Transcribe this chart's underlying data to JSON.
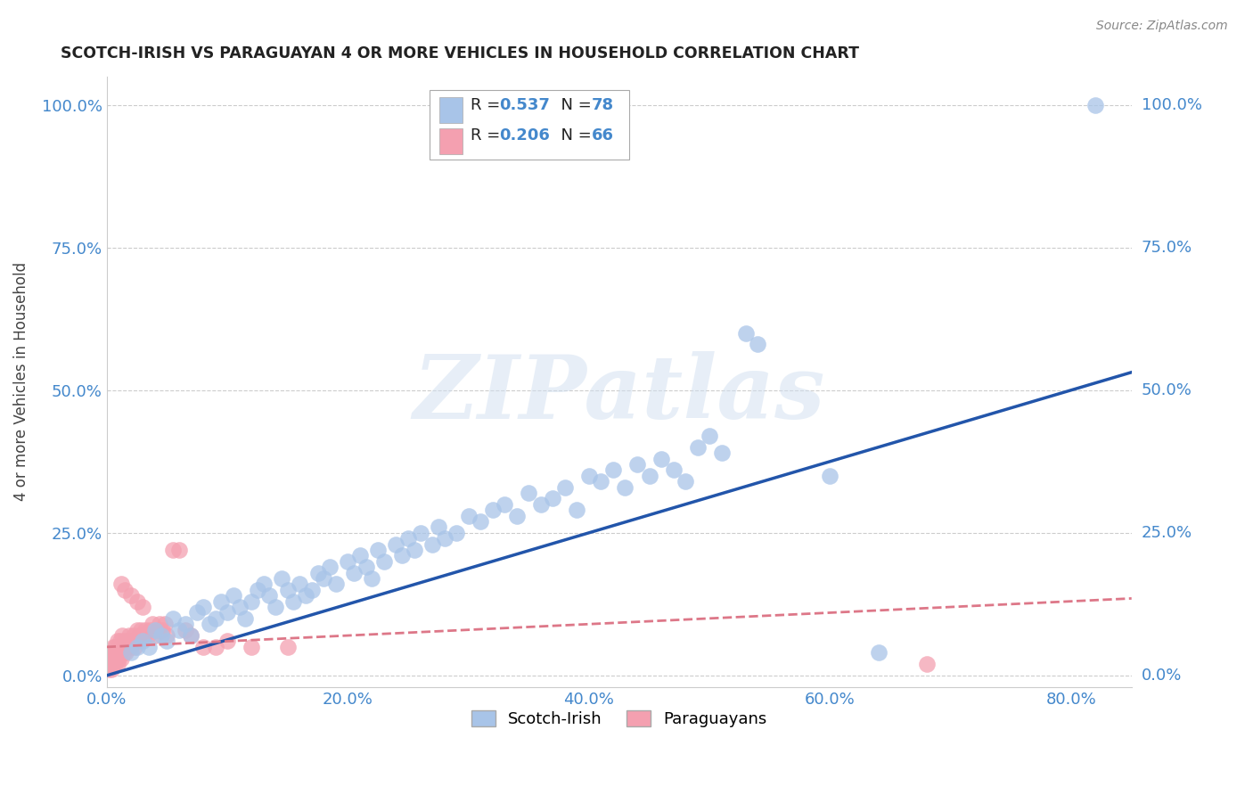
{
  "title": "SCOTCH-IRISH VS PARAGUAYAN 4 OR MORE VEHICLES IN HOUSEHOLD CORRELATION CHART",
  "source": "Source: ZipAtlas.com",
  "ylabel": "4 or more Vehicles in Household",
  "xticklabels": [
    "0.0%",
    "20.0%",
    "40.0%",
    "60.0%",
    "80.0%"
  ],
  "yticklabels": [
    "0.0%",
    "25.0%",
    "50.0%",
    "75.0%",
    "100.0%"
  ],
  "xticks": [
    0.0,
    0.2,
    0.4,
    0.6,
    0.8
  ],
  "yticks": [
    0.0,
    0.25,
    0.5,
    0.75,
    1.0
  ],
  "xlim": [
    0.0,
    0.85
  ],
  "ylim": [
    -0.02,
    1.05
  ],
  "scotch_irish_R": 0.537,
  "scotch_irish_N": 78,
  "paraguayan_R": 0.206,
  "paraguayan_N": 66,
  "scotch_irish_color": "#a8c4e8",
  "paraguayan_color": "#f4a0b0",
  "trendline_scotch_color": "#2255aa",
  "trendline_paraguayan_color": "#dd7788",
  "watermark": "ZIPatlas",
  "scotch_irish_x": [
    0.02,
    0.025,
    0.03,
    0.035,
    0.04,
    0.045,
    0.05,
    0.055,
    0.06,
    0.065,
    0.07,
    0.075,
    0.08,
    0.085,
    0.09,
    0.095,
    0.1,
    0.105,
    0.11,
    0.115,
    0.12,
    0.125,
    0.13,
    0.135,
    0.14,
    0.145,
    0.15,
    0.155,
    0.16,
    0.165,
    0.17,
    0.175,
    0.18,
    0.185,
    0.19,
    0.2,
    0.205,
    0.21,
    0.215,
    0.22,
    0.225,
    0.23,
    0.24,
    0.245,
    0.25,
    0.255,
    0.26,
    0.27,
    0.275,
    0.28,
    0.29,
    0.3,
    0.31,
    0.32,
    0.33,
    0.34,
    0.35,
    0.36,
    0.37,
    0.38,
    0.39,
    0.4,
    0.41,
    0.42,
    0.43,
    0.44,
    0.45,
    0.46,
    0.47,
    0.48,
    0.49,
    0.5,
    0.51,
    0.53,
    0.54,
    0.6,
    0.64,
    0.82
  ],
  "scotch_irish_y": [
    0.04,
    0.05,
    0.06,
    0.05,
    0.08,
    0.07,
    0.06,
    0.1,
    0.08,
    0.09,
    0.07,
    0.11,
    0.12,
    0.09,
    0.1,
    0.13,
    0.11,
    0.14,
    0.12,
    0.1,
    0.13,
    0.15,
    0.16,
    0.14,
    0.12,
    0.17,
    0.15,
    0.13,
    0.16,
    0.14,
    0.15,
    0.18,
    0.17,
    0.19,
    0.16,
    0.2,
    0.18,
    0.21,
    0.19,
    0.17,
    0.22,
    0.2,
    0.23,
    0.21,
    0.24,
    0.22,
    0.25,
    0.23,
    0.26,
    0.24,
    0.25,
    0.28,
    0.27,
    0.29,
    0.3,
    0.28,
    0.32,
    0.3,
    0.31,
    0.33,
    0.29,
    0.35,
    0.34,
    0.36,
    0.33,
    0.37,
    0.35,
    0.38,
    0.36,
    0.34,
    0.4,
    0.42,
    0.39,
    0.6,
    0.58,
    0.35,
    0.04,
    1.0
  ],
  "paraguayan_x": [
    0.001,
    0.002,
    0.002,
    0.003,
    0.003,
    0.004,
    0.004,
    0.005,
    0.005,
    0.006,
    0.006,
    0.007,
    0.007,
    0.008,
    0.008,
    0.009,
    0.009,
    0.01,
    0.01,
    0.011,
    0.011,
    0.012,
    0.012,
    0.013,
    0.014,
    0.015,
    0.015,
    0.016,
    0.017,
    0.018,
    0.019,
    0.02,
    0.021,
    0.022,
    0.023,
    0.024,
    0.025,
    0.026,
    0.027,
    0.028,
    0.03,
    0.032,
    0.034,
    0.036,
    0.038,
    0.04,
    0.042,
    0.044,
    0.046,
    0.048,
    0.05,
    0.055,
    0.06,
    0.065,
    0.07,
    0.08,
    0.09,
    0.1,
    0.12,
    0.15,
    0.03,
    0.025,
    0.02,
    0.015,
    0.012,
    0.68
  ],
  "paraguayan_y": [
    0.02,
    0.01,
    0.03,
    0.02,
    0.04,
    0.01,
    0.03,
    0.02,
    0.05,
    0.03,
    0.04,
    0.02,
    0.05,
    0.03,
    0.04,
    0.06,
    0.02,
    0.03,
    0.05,
    0.04,
    0.06,
    0.03,
    0.05,
    0.07,
    0.04,
    0.05,
    0.06,
    0.04,
    0.05,
    0.06,
    0.07,
    0.05,
    0.06,
    0.07,
    0.05,
    0.06,
    0.08,
    0.06,
    0.07,
    0.08,
    0.07,
    0.08,
    0.07,
    0.08,
    0.09,
    0.07,
    0.08,
    0.09,
    0.08,
    0.09,
    0.07,
    0.22,
    0.22,
    0.08,
    0.07,
    0.05,
    0.05,
    0.06,
    0.05,
    0.05,
    0.12,
    0.13,
    0.14,
    0.15,
    0.16,
    0.02
  ]
}
